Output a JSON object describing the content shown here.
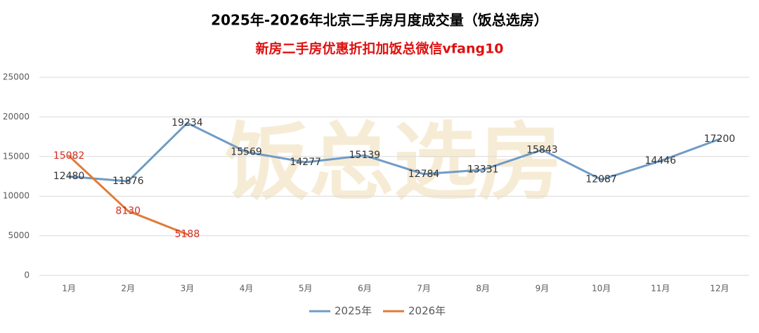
{
  "chart_data": {
    "type": "line",
    "title": "2025年-2026年北京二手房月度成交量（饭总选房）",
    "subtitle": "新房二手房优惠折扣加饭总微信vfang10",
    "watermark": "饭总选房",
    "categories": [
      "1月",
      "2月",
      "3月",
      "4月",
      "5月",
      "6月",
      "7月",
      "8月",
      "9月",
      "10月",
      "11月",
      "12月"
    ],
    "series": [
      {
        "name": "2025年",
        "color": "#6f9bc6",
        "label_color": "#333333",
        "values": [
          12480,
          11876,
          19234,
          15569,
          14277,
          15139,
          12784,
          13331,
          15843,
          12087,
          14446,
          17200
        ]
      },
      {
        "name": "2026年",
        "color": "#e07b39",
        "label_color": "#d42a1e",
        "values": [
          15082,
          8130,
          5188,
          null,
          null,
          null,
          null,
          null,
          null,
          null,
          null,
          null
        ]
      }
    ],
    "ylim": [
      0,
      25000
    ],
    "yticks": [
      0,
      5000,
      10000,
      15000,
      20000,
      25000
    ],
    "grid": true,
    "legend": "bottom"
  }
}
